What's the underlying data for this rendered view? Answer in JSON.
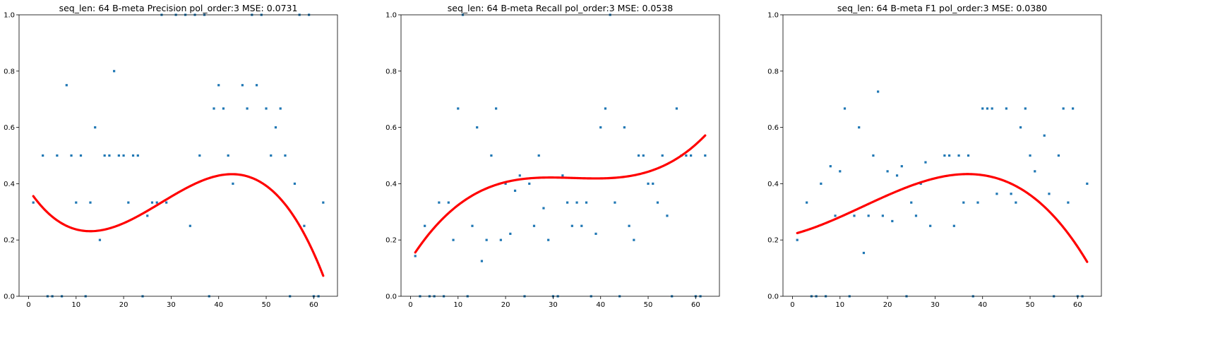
{
  "chart_data": [
    {
      "type": "scatter",
      "title": "seq_len: 64    B-meta   Precision   pol_order:3   MSE: 0.0731",
      "xlim": [
        -2,
        65
      ],
      "ylim": [
        0,
        1
      ],
      "xticks": [
        0,
        10,
        20,
        30,
        40,
        50,
        60
      ],
      "yticks": [
        0.0,
        0.2,
        0.4,
        0.6,
        0.8,
        1.0
      ],
      "grid": false,
      "points": [
        [
          1,
          0.333
        ],
        [
          3,
          0.5
        ],
        [
          4,
          0
        ],
        [
          5,
          0
        ],
        [
          6,
          0.5
        ],
        [
          7,
          0
        ],
        [
          8,
          0.75
        ],
        [
          9,
          0.5
        ],
        [
          10,
          0.333
        ],
        [
          11,
          0.5
        ],
        [
          12,
          0
        ],
        [
          13,
          0.333
        ],
        [
          14,
          0.6
        ],
        [
          15,
          0.2
        ],
        [
          16,
          0.5
        ],
        [
          17,
          0.5
        ],
        [
          18,
          0.8
        ],
        [
          19,
          0.5
        ],
        [
          20,
          0.5
        ],
        [
          21,
          0.333
        ],
        [
          22,
          0.5
        ],
        [
          23,
          0.5
        ],
        [
          24,
          0
        ],
        [
          25,
          0.286
        ],
        [
          26,
          0.333
        ],
        [
          27,
          0.333
        ],
        [
          28,
          1
        ],
        [
          29,
          0.333
        ],
        [
          31,
          1
        ],
        [
          33,
          1
        ],
        [
          34,
          0.25
        ],
        [
          35,
          1
        ],
        [
          36,
          0.5
        ],
        [
          37,
          1
        ],
        [
          38,
          0
        ],
        [
          39,
          0.667
        ],
        [
          40,
          0.75
        ],
        [
          41,
          0.667
        ],
        [
          42,
          0.5
        ],
        [
          43,
          0.4
        ],
        [
          45,
          0.75
        ],
        [
          46,
          0.667
        ],
        [
          47,
          1
        ],
        [
          48,
          0.75
        ],
        [
          49,
          1
        ],
        [
          50,
          0.667
        ],
        [
          51,
          0.5
        ],
        [
          52,
          0.6
        ],
        [
          53,
          0.667
        ],
        [
          54,
          0.5
        ],
        [
          55,
          0
        ],
        [
          56,
          0.4
        ],
        [
          57,
          1
        ],
        [
          58,
          0.25
        ],
        [
          59,
          1
        ],
        [
          60,
          0
        ],
        [
          61,
          0
        ],
        [
          62,
          0.333
        ]
      ],
      "fit_curve": {
        "name": "",
        "x_range": [
          1,
          62
        ],
        "coeffs": [
          0.38,
          -0.0255,
          0.00128,
          -1.53e-05
        ]
      }
    },
    {
      "type": "scatter",
      "title": "seq_len: 64    B-meta   Recall   pol_order:3   MSE: 0.0538",
      "xlim": [
        -2,
        65
      ],
      "ylim": [
        0,
        1
      ],
      "xticks": [
        0,
        10,
        20,
        30,
        40,
        50,
        60
      ],
      "yticks": [
        0.0,
        0.2,
        0.4,
        0.6,
        0.8,
        1.0
      ],
      "grid": false,
      "points": [
        [
          1,
          0.143
        ],
        [
          2,
          0
        ],
        [
          3,
          0.25
        ],
        [
          4,
          0
        ],
        [
          5,
          0
        ],
        [
          6,
          0.333
        ],
        [
          7,
          0
        ],
        [
          8,
          0.333
        ],
        [
          9,
          0.2
        ],
        [
          10,
          0.667
        ],
        [
          11,
          1
        ],
        [
          12,
          0
        ],
        [
          13,
          0.25
        ],
        [
          14,
          0.6
        ],
        [
          15,
          0.125
        ],
        [
          16,
          0.2
        ],
        [
          17,
          0.5
        ],
        [
          18,
          0.667
        ],
        [
          19,
          0.2
        ],
        [
          20,
          0.4
        ],
        [
          21,
          0.222
        ],
        [
          22,
          0.375
        ],
        [
          23,
          0.429
        ],
        [
          24,
          0
        ],
        [
          25,
          0.4
        ],
        [
          26,
          0.25
        ],
        [
          27,
          0.5
        ],
        [
          28,
          0.313
        ],
        [
          29,
          0.2
        ],
        [
          30,
          0
        ],
        [
          31,
          0
        ],
        [
          32,
          0.429
        ],
        [
          33,
          0.333
        ],
        [
          34,
          0.25
        ],
        [
          35,
          0.333
        ],
        [
          36,
          0.25
        ],
        [
          37,
          0.333
        ],
        [
          38,
          0
        ],
        [
          39,
          0.222
        ],
        [
          40,
          0.6
        ],
        [
          41,
          0.667
        ],
        [
          42,
          1
        ],
        [
          43,
          0.333
        ],
        [
          44,
          0
        ],
        [
          45,
          0.6
        ],
        [
          46,
          0.25
        ],
        [
          47,
          0.2
        ],
        [
          48,
          0.5
        ],
        [
          49,
          0.5
        ],
        [
          50,
          0.4
        ],
        [
          51,
          0.4
        ],
        [
          52,
          0.333
        ],
        [
          53,
          0.5
        ],
        [
          54,
          0.286
        ],
        [
          55,
          0
        ],
        [
          56,
          0.667
        ],
        [
          57,
          0.5
        ],
        [
          58,
          0.5
        ],
        [
          59,
          0.5
        ],
        [
          60,
          0
        ],
        [
          61,
          0
        ],
        [
          62,
          0.5
        ]
      ],
      "fit_curve": {
        "name": "",
        "x_range": [
          1,
          62
        ],
        "coeffs": [
          0.13,
          0.0265,
          -0.00079,
          7.7e-06
        ]
      }
    },
    {
      "type": "scatter",
      "title": "seq_len: 64    B-meta   F1   pol_order:3   MSE: 0.0380",
      "xlim": [
        -2,
        65
      ],
      "ylim": [
        0,
        1
      ],
      "xticks": [
        0,
        10,
        20,
        30,
        40,
        50,
        60
      ],
      "yticks": [
        0.0,
        0.2,
        0.4,
        0.6,
        0.8,
        1.0
      ],
      "grid": false,
      "points": [
        [
          1,
          0.2
        ],
        [
          3,
          0.333
        ],
        [
          4,
          0
        ],
        [
          5,
          0
        ],
        [
          6,
          0.4
        ],
        [
          7,
          0
        ],
        [
          8,
          0.462
        ],
        [
          9,
          0.286
        ],
        [
          10,
          0.444
        ],
        [
          11,
          0.667
        ],
        [
          12,
          0
        ],
        [
          13,
          0.286
        ],
        [
          14,
          0.6
        ],
        [
          15,
          0.154
        ],
        [
          16,
          0.286
        ],
        [
          17,
          0.5
        ],
        [
          18,
          0.727
        ],
        [
          19,
          0.286
        ],
        [
          20,
          0.444
        ],
        [
          21,
          0.267
        ],
        [
          22,
          0.429
        ],
        [
          23,
          0.462
        ],
        [
          24,
          0
        ],
        [
          25,
          0.333
        ],
        [
          26,
          0.286
        ],
        [
          27,
          0.4
        ],
        [
          28,
          0.476
        ],
        [
          29,
          0.25
        ],
        [
          32,
          0.5
        ],
        [
          33,
          0.5
        ],
        [
          34,
          0.25
        ],
        [
          35,
          0.5
        ],
        [
          36,
          0.333
        ],
        [
          37,
          0.5
        ],
        [
          38,
          0
        ],
        [
          39,
          0.333
        ],
        [
          40,
          0.667
        ],
        [
          41,
          0.667
        ],
        [
          42,
          0.667
        ],
        [
          43,
          0.364
        ],
        [
          45,
          0.667
        ],
        [
          46,
          0.364
        ],
        [
          47,
          0.333
        ],
        [
          48,
          0.6
        ],
        [
          49,
          0.667
        ],
        [
          50,
          0.5
        ],
        [
          51,
          0.444
        ],
        [
          53,
          0.571
        ],
        [
          54,
          0.364
        ],
        [
          55,
          0
        ],
        [
          56,
          0.5
        ],
        [
          57,
          0.667
        ],
        [
          58,
          0.333
        ],
        [
          59,
          0.667
        ],
        [
          60,
          0
        ],
        [
          61,
          0
        ],
        [
          62,
          0.4
        ]
      ],
      "fit_curve": {
        "name": "",
        "x_range": [
          1,
          62
        ],
        "coeffs": [
          0.22,
          0.0043,
          0.00024,
          -5.4e-06
        ]
      }
    }
  ],
  "colors": {
    "points": "#1f77b4",
    "fit": "#ff0000",
    "axes": "#000000"
  }
}
